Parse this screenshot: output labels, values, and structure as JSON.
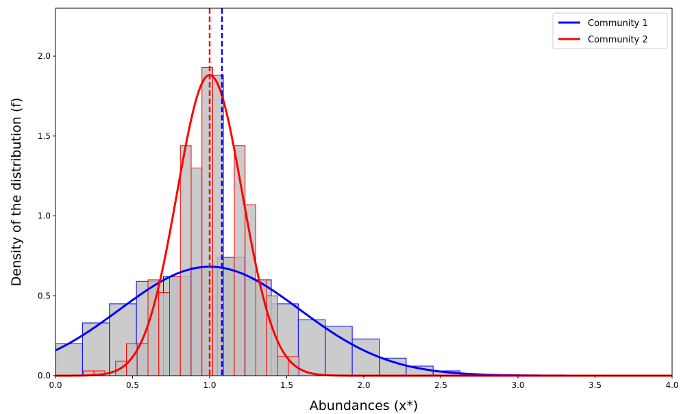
{
  "chart_data": {
    "type": "bar",
    "xlabel": "Abundances (x*)",
    "ylabel": "Density of the distribution (f)",
    "xlim": [
      0.0,
      4.0
    ],
    "ylim": [
      0.0,
      2.3
    ],
    "xticks": [
      "0.0",
      "0.5",
      "1.0",
      "1.5",
      "2.0",
      "2.5",
      "3.0",
      "3.5",
      "4.0"
    ],
    "yticks": [
      "0.0",
      "0.5",
      "1.0",
      "1.5",
      "2.0"
    ],
    "grid": false,
    "legend_position": "top-right",
    "series": [
      {
        "name": "Community 1",
        "color": "#0000ff",
        "hist_fill": "#c0c0c0",
        "bin_width": 0.175,
        "bins": [
          {
            "x": 0.0,
            "density": 0.2
          },
          {
            "x": 0.175,
            "density": 0.33
          },
          {
            "x": 0.35,
            "density": 0.45
          },
          {
            "x": 0.525,
            "density": 0.59
          },
          {
            "x": 0.7,
            "density": 0.62
          },
          {
            "x": 0.875,
            "density": 0.68
          },
          {
            "x": 1.05,
            "density": 0.74
          },
          {
            "x": 1.225,
            "density": 0.6
          },
          {
            "x": 1.4,
            "density": 0.45
          },
          {
            "x": 1.575,
            "density": 0.35
          },
          {
            "x": 1.75,
            "density": 0.31
          },
          {
            "x": 1.925,
            "density": 0.23
          },
          {
            "x": 2.1,
            "density": 0.11
          },
          {
            "x": 2.275,
            "density": 0.06
          },
          {
            "x": 2.45,
            "density": 0.03
          },
          {
            "x": 2.625,
            "density": 0.01
          }
        ],
        "fit": {
          "mean": 1.0,
          "sd": 0.585
        },
        "mean_line": 1.08
      },
      {
        "name": "Community 2",
        "color": "#ff0000",
        "hist_fill": "#c0c0c0",
        "bin_width": 0.07,
        "bins": [
          {
            "x": 0.18,
            "density": 0.03
          },
          {
            "x": 0.25,
            "density": 0.03
          },
          {
            "x": 0.39,
            "density": 0.09
          },
          {
            "x": 0.46,
            "density": 0.2
          },
          {
            "x": 0.53,
            "density": 0.2
          },
          {
            "x": 0.6,
            "density": 0.6
          },
          {
            "x": 0.67,
            "density": 0.52
          },
          {
            "x": 0.74,
            "density": 0.62
          },
          {
            "x": 0.81,
            "density": 1.44
          },
          {
            "x": 0.88,
            "density": 1.3
          },
          {
            "x": 0.95,
            "density": 1.93
          },
          {
            "x": 1.02,
            "density": 1.88
          },
          {
            "x": 1.09,
            "density": 0.74
          },
          {
            "x": 1.16,
            "density": 1.44
          },
          {
            "x": 1.23,
            "density": 1.07
          },
          {
            "x": 1.3,
            "density": 0.6
          },
          {
            "x": 1.37,
            "density": 0.5
          },
          {
            "x": 1.44,
            "density": 0.12
          },
          {
            "x": 1.51,
            "density": 0.12
          }
        ],
        "fit": {
          "mean": 1.0,
          "sd": 0.212
        },
        "mean_line": 1.0
      }
    ]
  }
}
